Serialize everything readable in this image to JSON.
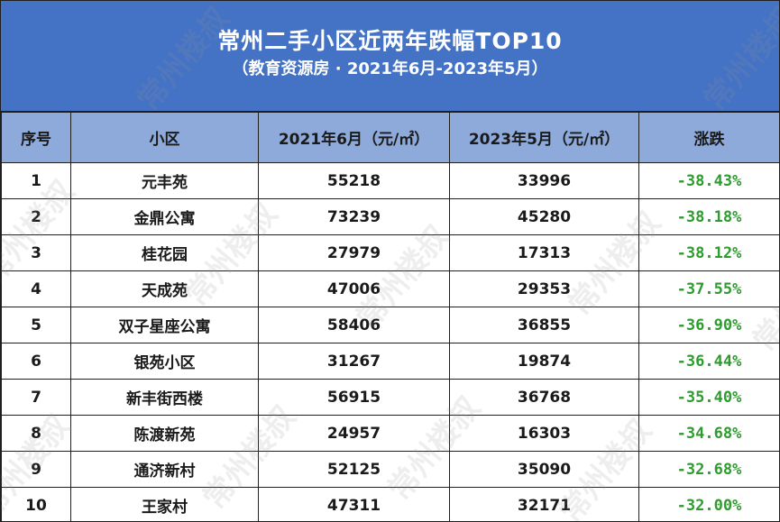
{
  "header": {
    "title": "常州二手小区近两年跌幅TOP10",
    "subtitle": "（教育资源房 · 2021年6月-2023年5月）"
  },
  "table": {
    "columns": [
      "序号",
      "小区",
      "2021年6月（元/㎡）",
      "2023年5月（元/㎡）",
      "涨跌"
    ],
    "rows": [
      {
        "no": "1",
        "name": "元丰苑",
        "price_2021": "55218",
        "price_2023": "33996",
        "change": "-38.43%"
      },
      {
        "no": "2",
        "name": "金鼎公寓",
        "price_2021": "73239",
        "price_2023": "45280",
        "change": "-38.18%"
      },
      {
        "no": "3",
        "name": "桂花园",
        "price_2021": "27979",
        "price_2023": "17313",
        "change": "-38.12%"
      },
      {
        "no": "4",
        "name": "天成苑",
        "price_2021": "47006",
        "price_2023": "29353",
        "change": "-37.55%"
      },
      {
        "no": "5",
        "name": "双子星座公寓",
        "price_2021": "58406",
        "price_2023": "36855",
        "change": "-36.90%"
      },
      {
        "no": "6",
        "name": "银苑小区",
        "price_2021": "31267",
        "price_2023": "19874",
        "change": "-36.44%"
      },
      {
        "no": "7",
        "name": "新丰街西楼",
        "price_2021": "56915",
        "price_2023": "36768",
        "change": "-35.40%"
      },
      {
        "no": "8",
        "name": "陈渡新苑",
        "price_2021": "24957",
        "price_2023": "16303",
        "change": "-34.68%"
      },
      {
        "no": "9",
        "name": "通济新村",
        "price_2021": "52125",
        "price_2023": "35090",
        "change": "-32.68%"
      },
      {
        "no": "10",
        "name": "王家村",
        "price_2021": "47311",
        "price_2023": "32171",
        "change": "-32.00%"
      }
    ]
  },
  "watermark": "常州楼叔",
  "colors": {
    "header_bg": "#4472c4",
    "column_header_bg": "#8eaadb",
    "change_text": "#2e9b2e"
  }
}
